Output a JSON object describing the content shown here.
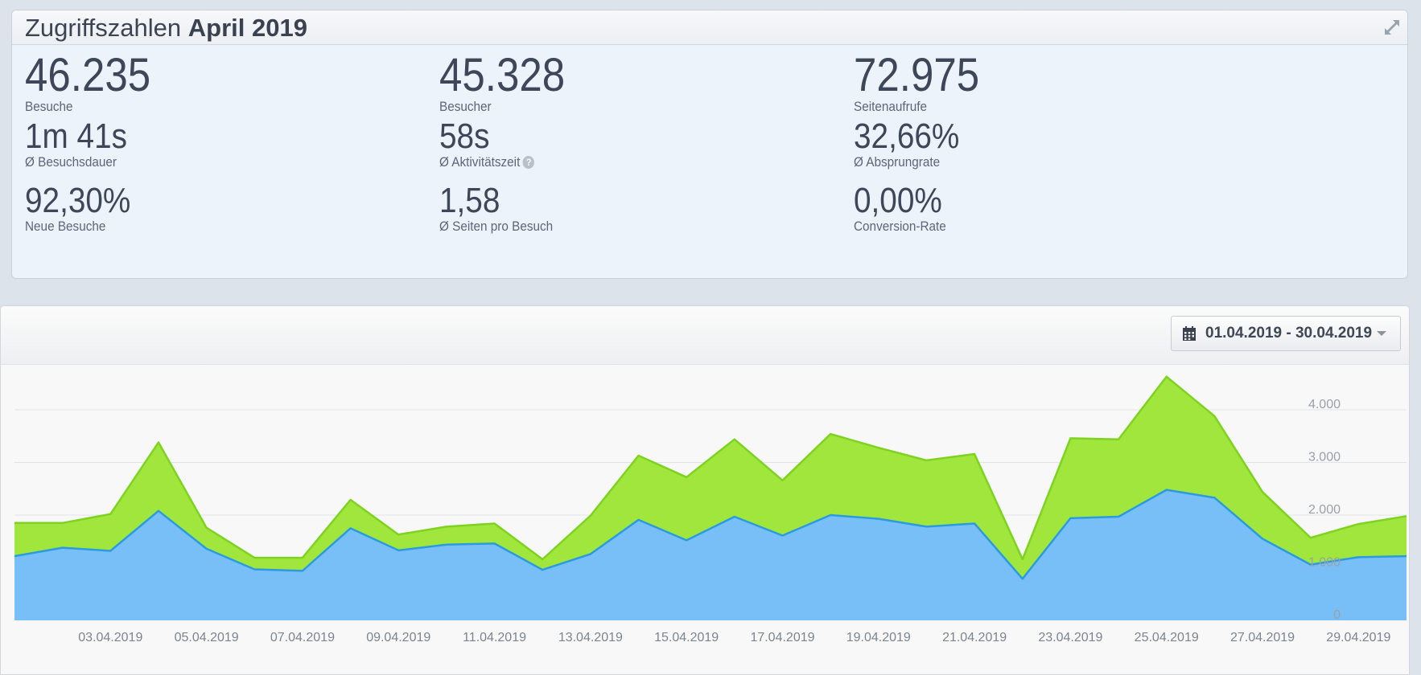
{
  "summary": {
    "title_prefix": "Zugriffszahlen",
    "title_period": "April 2019",
    "kpis": [
      {
        "value": "46.235",
        "label": "Besuche"
      },
      {
        "value": "45.328",
        "label": "Besucher"
      },
      {
        "value": "72.975",
        "label": "Seitenaufrufe"
      },
      {
        "value": "1m 41s",
        "label": "Ø Besuchsdauer"
      },
      {
        "value": "58s",
        "label": "Ø Aktivitätszeit"
      },
      {
        "value": "32,66%",
        "label": "Ø Absprungrate"
      },
      {
        "value": "92,30%",
        "label": "Neue Besuche"
      },
      {
        "value": "1,58",
        "label": "Ø Seiten pro Besuch"
      },
      {
        "value": "0,00%",
        "label": "Conversion-Rate"
      }
    ],
    "help_glyph": "?"
  },
  "toolbar": {
    "date_range": "01.04.2019 - 30.04.2019"
  },
  "icons": {
    "expand": "expand-icon",
    "calendar": "calendar-icon",
    "help": "help-icon",
    "dropdown": "caret-down-icon"
  },
  "colors": {
    "green_area": "#a0e63c",
    "green_line": "#7ed321",
    "blue_area": "#78bff8",
    "blue_line": "#2b9be0"
  },
  "chart_data": {
    "type": "area",
    "x": [
      "01.04.2019",
      "02.04.2019",
      "03.04.2019",
      "04.04.2019",
      "05.04.2019",
      "06.04.2019",
      "07.04.2019",
      "08.04.2019",
      "09.04.2019",
      "10.04.2019",
      "11.04.2019",
      "12.04.2019",
      "13.04.2019",
      "14.04.2019",
      "15.04.2019",
      "16.04.2019",
      "17.04.2019",
      "18.04.2019",
      "19.04.2019",
      "20.04.2019",
      "21.04.2019",
      "22.04.2019",
      "23.04.2019",
      "24.04.2019",
      "25.04.2019",
      "26.04.2019",
      "27.04.2019",
      "28.04.2019",
      "29.04.2019",
      "30.04.2019"
    ],
    "x_tick_labels": [
      "03.04.2019",
      "05.04.2019",
      "07.04.2019",
      "09.04.2019",
      "11.04.2019",
      "13.04.2019",
      "15.04.2019",
      "17.04.2019",
      "19.04.2019",
      "21.04.2019",
      "23.04.2019",
      "25.04.2019",
      "27.04.2019",
      "29.04.2019"
    ],
    "series": [
      {
        "values": [
          1850,
          1850,
          2020,
          3380,
          1760,
          1190,
          1190,
          2290,
          1630,
          1780,
          1840,
          1160,
          1990,
          3130,
          2720,
          3440,
          2660,
          3540,
          3280,
          3040,
          3160,
          1160,
          3460,
          3440,
          4630,
          3880,
          2440,
          1570,
          1830,
          1980
        ]
      },
      {
        "values": [
          1220,
          1380,
          1320,
          2080,
          1360,
          970,
          940,
          1750,
          1330,
          1440,
          1460,
          960,
          1260,
          1910,
          1520,
          1970,
          1610,
          2000,
          1930,
          1780,
          1840,
          790,
          1940,
          1970,
          2480,
          2330,
          1550,
          1060,
          1200,
          1220
        ]
      }
    ],
    "ylim": [
      0,
      5000
    ],
    "y_ticks": [
      "0",
      "1.000",
      "2.000",
      "3.000",
      "4.000"
    ],
    "grid": true,
    "legend": "none"
  }
}
